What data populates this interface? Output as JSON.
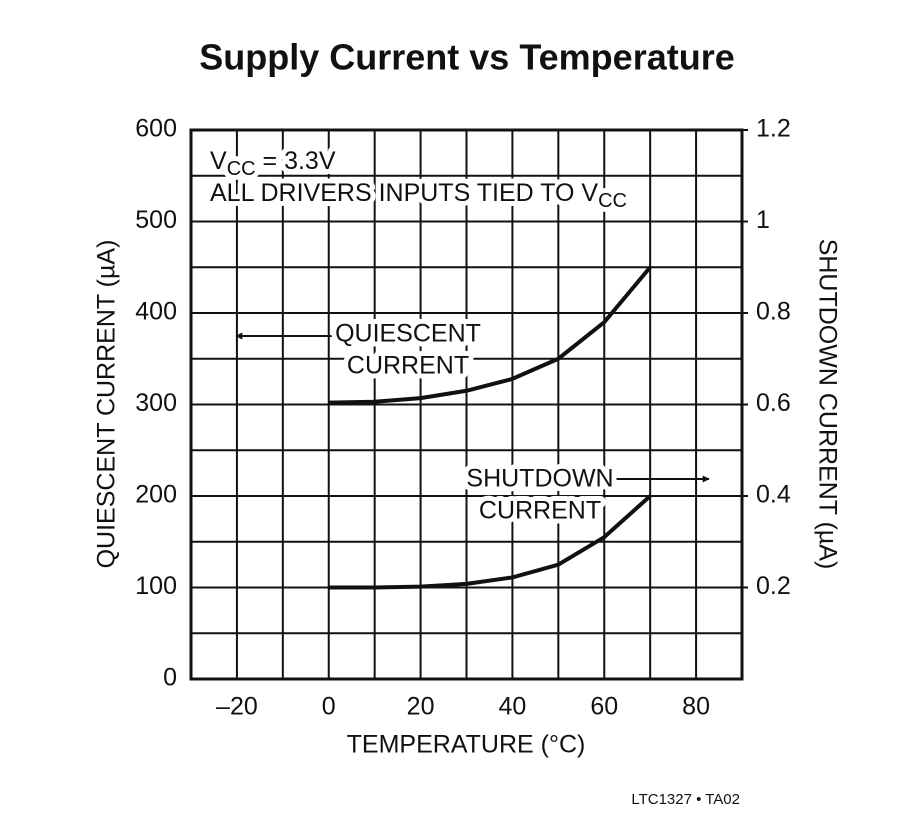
{
  "chart_data": {
    "type": "line",
    "title": "Supply Current vs Temperature",
    "x_label": "TEMPERATURE (°C)",
    "y_label": "QUIESCENT CURRENT (µA)",
    "y2_label": "SHUTDOWN CURRENT (µA)",
    "conditions": [
      [
        "V",
        "CC",
        " = 3.3V"
      ],
      [
        "ALL DRIVERS INPUTS TIED TO V",
        "CC"
      ]
    ],
    "footnote": "LTC1327 • TA02",
    "xlim": [
      -30,
      90
    ],
    "xticks": [
      {
        "value": -20,
        "label": "–20"
      },
      0,
      20,
      40,
      60,
      80
    ],
    "ylim": [
      0,
      600
    ],
    "yticks": [
      0,
      100,
      200,
      300,
      400,
      500,
      600
    ],
    "y2lim": [
      0,
      1.2
    ],
    "y2ticks": [
      0.2,
      0.4,
      0.6,
      0.8,
      1.0,
      1.2
    ],
    "grid": true,
    "series": [
      {
        "label": [
          "QUIESCENT",
          "CURRENT"
        ],
        "color": "#111111",
        "x": [
          0,
          10,
          20,
          30,
          40,
          50,
          60,
          70
        ],
        "values": [
          302,
          303,
          307,
          315,
          328,
          350,
          390,
          450
        ]
      },
      {
        "label": [
          "SHUTDOWN",
          "CURRENT"
        ],
        "color": "#111111",
        "axis": "y2",
        "x": [
          0,
          10,
          20,
          30,
          40,
          50,
          60,
          70
        ],
        "values": [
          0.2,
          0.2,
          0.202,
          0.208,
          0.222,
          0.25,
          0.31,
          0.4
        ]
      }
    ]
  }
}
